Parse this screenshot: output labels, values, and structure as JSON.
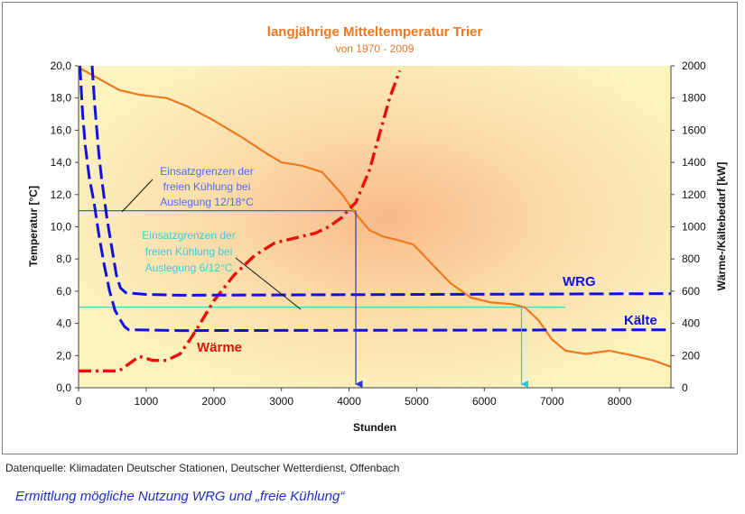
{
  "chart_data": {
    "type": "line",
    "title": "langjährige Mitteltemperatur Trier",
    "subtitle": "von 1970 - 2009",
    "xlabel": "Stunden",
    "ylabel": "Temperatur [°C]",
    "y2label": "Wärme-/Kältebedarf [kW]",
    "xlim": [
      0,
      8760
    ],
    "ylim": [
      0,
      20
    ],
    "y2lim": [
      0,
      2000
    ],
    "x_ticks": [
      "0",
      "1000",
      "2000",
      "3000",
      "4000",
      "5000",
      "6000",
      "7000",
      "8000"
    ],
    "y_ticks": [
      "0,0",
      "2,0",
      "4,0",
      "6,0",
      "8,0",
      "10,0",
      "12,0",
      "14,0",
      "16,0",
      "18,0",
      "20,0"
    ],
    "y2_ticks": [
      "0",
      "200",
      "400",
      "600",
      "800",
      "1000",
      "1200",
      "1400",
      "1600",
      "1800",
      "2000"
    ],
    "grid": false,
    "series": [
      {
        "name": "",
        "axis": "left",
        "color": "#f07820",
        "style": "solid",
        "x": [
          0,
          300,
          600,
          900,
          1300,
          1600,
          2000,
          2400,
          2800,
          3000,
          3300,
          3600,
          3900,
          4100,
          4300,
          4500,
          4700,
          4950,
          5200,
          5500,
          5800,
          6100,
          6400,
          6600,
          6800,
          7000,
          7200,
          7500,
          7850,
          8200,
          8500,
          8760
        ],
        "y": [
          19.9,
          19.2,
          18.5,
          18.2,
          18.0,
          17.5,
          16.6,
          15.6,
          14.5,
          14.0,
          13.8,
          13.4,
          12.0,
          10.8,
          9.8,
          9.4,
          9.2,
          8.9,
          7.8,
          6.5,
          5.6,
          5.3,
          5.2,
          5.0,
          4.2,
          3.0,
          2.3,
          2.1,
          2.3,
          2.0,
          1.7,
          1.3
        ]
      },
      {
        "name": "Wärme",
        "axis": "right",
        "color": "#e8100a",
        "style": "dashdot",
        "x": [
          0,
          300,
          600,
          750,
          900,
          1100,
          1300,
          1500,
          1650,
          1800,
          2000,
          2300,
          2600,
          2900,
          3200,
          3500,
          3700,
          3900,
          4000,
          4100,
          4200,
          4300,
          4400,
          4500,
          4600,
          4750
        ],
        "y": [
          105,
          105,
          105,
          150,
          195,
          170,
          170,
          210,
          300,
          400,
          540,
          700,
          820,
          900,
          930,
          960,
          1000,
          1060,
          1110,
          1150,
          1250,
          1350,
          1500,
          1650,
          1800,
          1970
        ]
      },
      {
        "name": "WRG",
        "axis": "right",
        "color": "#1010e0",
        "style": "dashed",
        "x": [
          200,
          240,
          300,
          340,
          420,
          500,
          560,
          620,
          700,
          1000,
          1500,
          8760
        ],
        "y": [
          2000,
          1750,
          1450,
          1300,
          1050,
          850,
          700,
          620,
          590,
          580,
          575,
          585
        ]
      },
      {
        "name": "Kälte",
        "axis": "right",
        "color": "#1010e0",
        "style": "dashed",
        "x": [
          20,
          60,
          100,
          160,
          230,
          300,
          380,
          460,
          540,
          620,
          680,
          740,
          1500,
          8760
        ],
        "y": [
          2000,
          1700,
          1500,
          1300,
          1150,
          950,
          760,
          600,
          480,
          420,
          380,
          360,
          355,
          360
        ]
      }
    ],
    "reference_lines": [
      {
        "axis": "left",
        "y": 11.0,
        "x_from": 0,
        "x_to": 4100,
        "color": "#3a62e0"
      },
      {
        "axis": "left",
        "y": 5.0,
        "x_from": 0,
        "x_to": 7200,
        "color": "#40d0d0"
      }
    ],
    "drop_lines": [
      {
        "x": 4100,
        "y_top": 11.0,
        "color": "#2a3ad0"
      },
      {
        "x": 6550,
        "y_top": 5.0,
        "color": "#30c8d8"
      }
    ],
    "annotations": [
      {
        "lines": [
          "Einsatzgrenzen der",
          "freien Kühlung bei",
          "Auslegung 12/18°C"
        ],
        "color": "#4a6cf0"
      },
      {
        "lines": [
          "Einsatzgrenzen der",
          "freien Kühlung bei",
          "Auslegung 6/12°C"
        ],
        "color": "#30d0e0"
      },
      {
        "text": "WRG",
        "color": "#1010e0"
      },
      {
        "text": "Kälte",
        "color": "#1010e0"
      },
      {
        "text": "Wärme",
        "color": "#e8100a"
      }
    ]
  },
  "source_note": "Datenquelle: Klimadaten Deutscher Stationen, Deutscher Wetterdienst, Offenbach",
  "caption": "Ermittlung mögliche Nutzung WRG und „freie Kühlung“"
}
